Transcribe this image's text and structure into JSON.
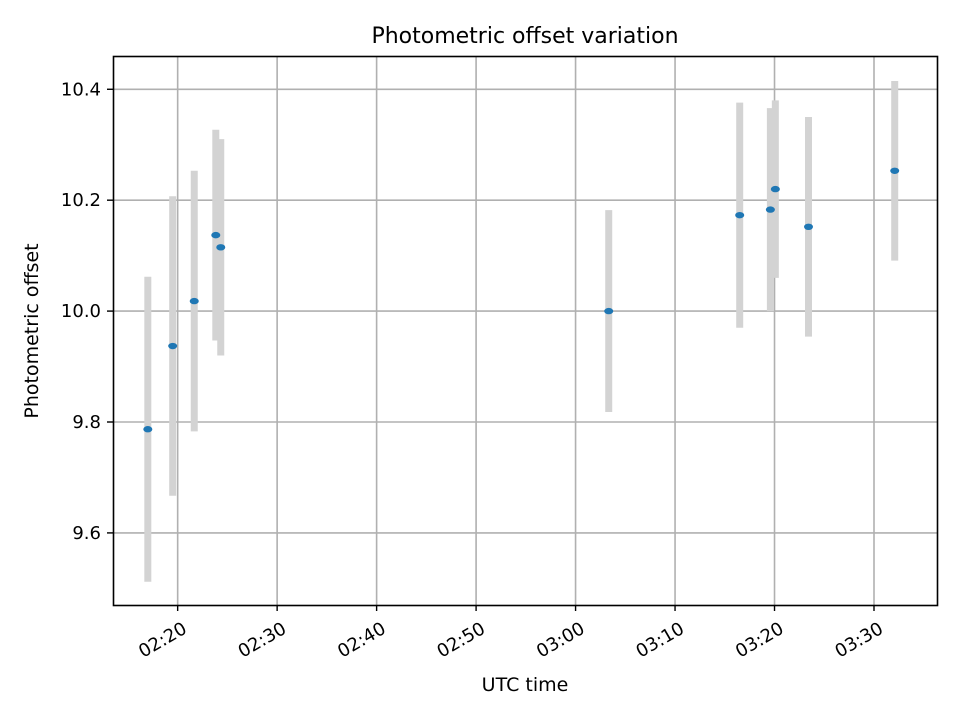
{
  "chart_data": {
    "type": "scatter",
    "title": "Photometric offset variation",
    "xlabel": "UTC time",
    "ylabel": "Photometric offset",
    "x_unit": "time (HH:MM, UTC)",
    "xlim": [
      "02:13:30",
      "03:36:20"
    ],
    "ylim": [
      9.47,
      10.46
    ],
    "x_ticks": [
      "02:20",
      "02:30",
      "02:40",
      "02:50",
      "03:00",
      "03:10",
      "03:20",
      "03:30"
    ],
    "y_ticks": [
      9.6,
      9.8,
      10.0,
      10.2,
      10.4
    ],
    "y_tick_labels": [
      "9.6",
      "9.8",
      "10.0",
      "10.2",
      "10.4"
    ],
    "grid": true,
    "x_tick_rotation": "30 degrees",
    "colors": {
      "marker": "#1f77b4",
      "errorbar": "#d3d3d3",
      "grid": "#b0b0b0"
    },
    "series": [
      {
        "points": [
          {
            "x": "02:17:00",
            "y": 9.787,
            "yerr": 0.275
          },
          {
            "x": "02:19:30",
            "y": 9.937,
            "yerr": 0.27
          },
          {
            "x": "02:21:40",
            "y": 10.018,
            "yerr": 0.235
          },
          {
            "x": "02:23:50",
            "y": 10.137,
            "yerr": 0.19
          },
          {
            "x": "02:24:20",
            "y": 10.115,
            "yerr": 0.195
          },
          {
            "x": "03:03:20",
            "y": 10.0,
            "yerr": 0.182
          },
          {
            "x": "03:16:30",
            "y": 10.173,
            "yerr": 0.203
          },
          {
            "x": "03:19:35",
            "y": 10.183,
            "yerr": 0.183
          },
          {
            "x": "03:20:05",
            "y": 10.22,
            "yerr": 0.16
          },
          {
            "x": "03:23:25",
            "y": 10.152,
            "yerr": 0.198
          },
          {
            "x": "03:32:05",
            "y": 10.253,
            "yerr": 0.162
          }
        ]
      }
    ]
  }
}
